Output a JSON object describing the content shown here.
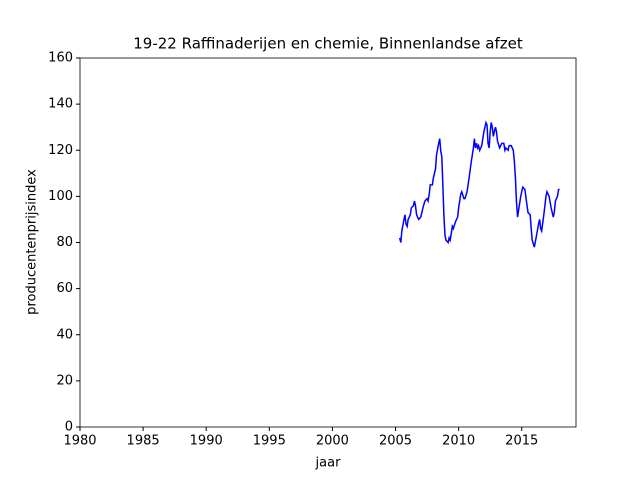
{
  "chart_data": {
    "type": "line",
    "title": "19-22 Raffinaderijen en chemie, Binnenlandse afzet",
    "x_label": "jaar",
    "y_label": "producentenprijsindex",
    "xlim": [
      1980,
      2019.3
    ],
    "xticks": [
      1980,
      1985,
      1990,
      1995,
      2000,
      2005,
      2010,
      2015
    ],
    "ylim": [
      0,
      160
    ],
    "yticks": [
      0,
      20,
      40,
      60,
      80,
      100,
      120,
      140,
      160
    ],
    "x": [
      2005.33,
      2005.42,
      2005.5,
      2005.67,
      2005.75,
      2005.83,
      2005.92,
      2006.0,
      2006.17,
      2006.25,
      2006.42,
      2006.5,
      2006.58,
      2006.67,
      2006.83,
      2007.0,
      2007.17,
      2007.33,
      2007.5,
      2007.58,
      2007.67,
      2007.75,
      2007.92,
      2008.0,
      2008.17,
      2008.25,
      2008.42,
      2008.5,
      2008.58,
      2008.67,
      2008.75,
      2008.83,
      2008.92,
      2009.0,
      2009.17,
      2009.25,
      2009.33,
      2009.42,
      2009.5,
      2009.58,
      2009.75,
      2009.92,
      2010.0,
      2010.17,
      2010.25,
      2010.42,
      2010.5,
      2010.67,
      2010.83,
      2011.0,
      2011.17,
      2011.25,
      2011.33,
      2011.42,
      2011.5,
      2011.58,
      2011.67,
      2011.83,
      2012.0,
      2012.17,
      2012.25,
      2012.33,
      2012.42,
      2012.5,
      2012.58,
      2012.67,
      2012.75,
      2012.83,
      2012.92,
      2013.0,
      2013.08,
      2013.25,
      2013.42,
      2013.58,
      2013.67,
      2013.75,
      2013.92,
      2014.0,
      2014.17,
      2014.33,
      2014.42,
      2014.5,
      2014.58,
      2014.67,
      2014.75,
      2014.92,
      2015.08,
      2015.25,
      2015.42,
      2015.5,
      2015.67,
      2015.75,
      2015.83,
      2016.0,
      2016.17,
      2016.33,
      2016.42,
      2016.5,
      2016.58,
      2016.75,
      2016.92,
      2017.0,
      2017.17,
      2017.33,
      2017.5,
      2017.58,
      2017.67,
      2017.83,
      2017.92,
      2018.0
    ],
    "series": [
      {
        "color": "#0000ff",
        "values": [
          82,
          80,
          85,
          90,
          92,
          88,
          87,
          90,
          92,
          95,
          96,
          98,
          96,
          92,
          90,
          91,
          95,
          98,
          99,
          98,
          101,
          105,
          105,
          108,
          112,
          118,
          123,
          125,
          120,
          117,
          105,
          92,
          83,
          81,
          80,
          82,
          81,
          84,
          87,
          86,
          89,
          91,
          95,
          101,
          102,
          99,
          99,
          102,
          108,
          115,
          121,
          125,
          121,
          123,
          121,
          122,
          120,
          122,
          128,
          132,
          131,
          123,
          121,
          128,
          132,
          130,
          126,
          128,
          130,
          128,
          124,
          121,
          123,
          123,
          120,
          121,
          120,
          122,
          122,
          120,
          115,
          108,
          98,
          91,
          94,
          100,
          104,
          103,
          96,
          93,
          92,
          86,
          81,
          78,
          83,
          88,
          90,
          86,
          85,
          92,
          100,
          102,
          100,
          95,
          91,
          93,
          98,
          100,
          103,
          103
        ]
      }
    ]
  }
}
